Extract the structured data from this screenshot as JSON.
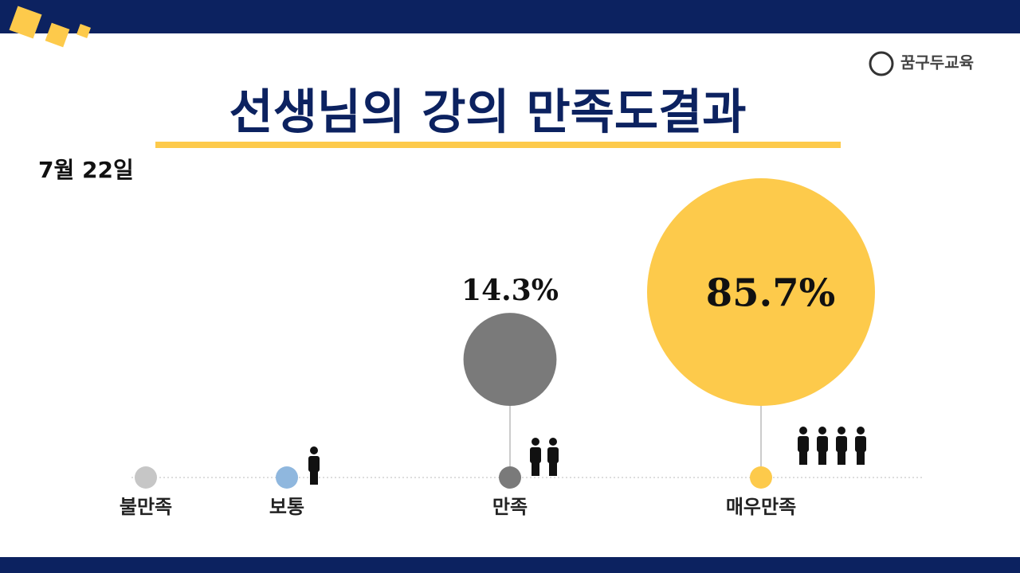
{
  "logo": "꿈구두교육",
  "chart_data": {
    "type": "bubble",
    "title": "선생님의 강의 만족도결과",
    "subtitle": "7월 22일",
    "categories": [
      "불만족",
      "보통",
      "만족",
      "매우만족"
    ],
    "values": [
      0,
      0,
      14.3,
      85.7
    ],
    "value_labels": [
      null,
      null,
      "14.3%",
      "85.7%"
    ],
    "colors": [
      "#c6c6c6",
      "#8fb7de",
      "#7a7a7a",
      "#fdca4b"
    ]
  }
}
